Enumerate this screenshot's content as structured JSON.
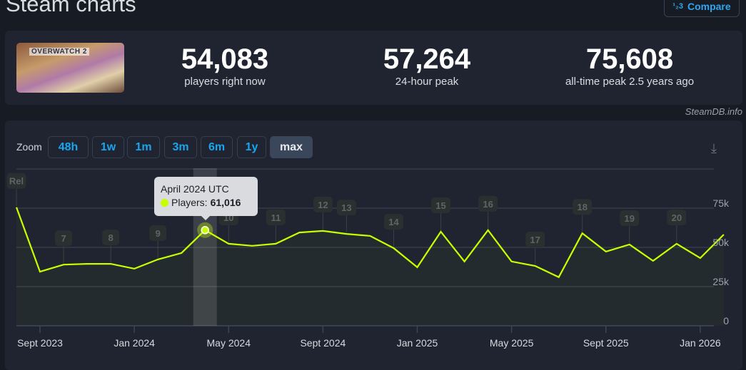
{
  "page_title": "Steam charts",
  "compare_button": {
    "label": "Compare",
    "icon": "numbers-compare-icon"
  },
  "game": {
    "image_alt": "OVERWATCH 2"
  },
  "stats": [
    {
      "value": "54,083",
      "label": "players right now"
    },
    {
      "value": "57,264",
      "label": "24-hour peak"
    },
    {
      "value": "75,608",
      "label": "all-time peak 2.5 years ago"
    }
  ],
  "credit": "SteamDB.info",
  "zoom": {
    "label": "Zoom",
    "options": [
      "48h",
      "1w",
      "1m",
      "3m",
      "6m",
      "1y",
      "max"
    ],
    "selected": "max"
  },
  "download_icon": "download-icon",
  "tooltip": {
    "title": "April 2024 UTC",
    "series": "Players:",
    "value": "61,016"
  },
  "colors": {
    "line": "#c8ff00",
    "accent": "#19a6f0",
    "panel": "#1f2430",
    "background": "#171b23"
  },
  "chart_data": {
    "type": "line",
    "x": [
      "2023-08",
      "2023-09",
      "2023-10",
      "2023-11",
      "2023-12",
      "2024-01",
      "2024-02",
      "2024-03",
      "2024-04",
      "2024-05",
      "2024-06",
      "2024-07",
      "2024-08",
      "2024-09",
      "2024-10",
      "2024-11",
      "2024-12",
      "2025-01",
      "2025-02",
      "2025-03",
      "2025-04",
      "2025-05",
      "2025-06",
      "2025-07",
      "2025-08",
      "2025-09",
      "2025-10",
      "2025-11",
      "2025-12",
      "2026-01",
      "2026-02"
    ],
    "series": [
      {
        "name": "Players",
        "values": [
          75600,
          34500,
          39000,
          39500,
          39500,
          36400,
          42300,
          46400,
          61016,
          52300,
          51000,
          52300,
          59500,
          60500,
          58600,
          57300,
          49500,
          37300,
          60000,
          41000,
          61000,
          41000,
          38200,
          31000,
          59000,
          47300,
          51800,
          41400,
          52300,
          43200,
          58200
        ]
      }
    ],
    "ylim": [
      0,
      100000
    ],
    "yticks": [
      "0",
      "25k",
      "50k",
      "75k"
    ],
    "xticks": [
      {
        "label": "Sept 2023",
        "x": "2023-09"
      },
      {
        "label": "Jan 2024",
        "x": "2024-01"
      },
      {
        "label": "May 2024",
        "x": "2024-05"
      },
      {
        "label": "Sept 2024",
        "x": "2024-09"
      },
      {
        "label": "Jan 2025",
        "x": "2025-01"
      },
      {
        "label": "May 2025",
        "x": "2025-05"
      },
      {
        "label": "Sept 2025",
        "x": "2025-09"
      },
      {
        "label": "Jan 2026",
        "x": "2026-01"
      }
    ],
    "annotations": [
      {
        "label": "Rel",
        "x": "2023-08"
      },
      {
        "label": "7",
        "x": "2023-10"
      },
      {
        "label": "8",
        "x": "2023-12"
      },
      {
        "label": "9",
        "x": "2024-02"
      },
      {
        "label": "10",
        "x": "2024-05"
      },
      {
        "label": "11",
        "x": "2024-07"
      },
      {
        "label": "12",
        "x": "2024-09"
      },
      {
        "label": "13",
        "x": "2024-10"
      },
      {
        "label": "14",
        "x": "2024-12"
      },
      {
        "label": "15",
        "x": "2025-02"
      },
      {
        "label": "16",
        "x": "2025-04"
      },
      {
        "label": "17",
        "x": "2025-06"
      },
      {
        "label": "18",
        "x": "2025-08"
      },
      {
        "label": "19",
        "x": "2025-10"
      },
      {
        "label": "20",
        "x": "2025-12"
      }
    ],
    "highlighted": "2024-04",
    "grid": true,
    "legend": "none"
  }
}
